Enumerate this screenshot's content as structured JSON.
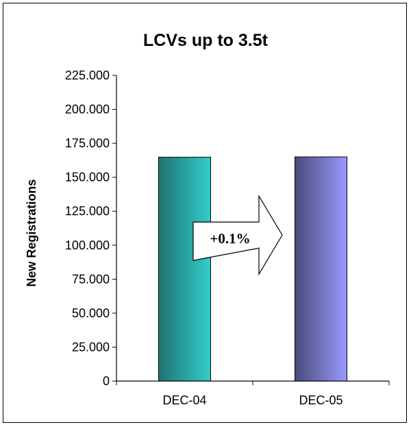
{
  "chart_data": {
    "type": "bar",
    "title": "LCVs up to 3.5t",
    "xlabel": "",
    "ylabel": "New Registrations",
    "categories": [
      "DEC-04",
      "DEC-05"
    ],
    "values": [
      164800,
      165000
    ],
    "ylim": [
      0,
      225000
    ],
    "yticks": [
      0,
      25000,
      50000,
      75000,
      100000,
      125000,
      150000,
      175000,
      200000,
      225000
    ],
    "ytick_labels": [
      "0",
      "25.000",
      "50.000",
      "75.000",
      "100.000",
      "125.000",
      "150.000",
      "175.000",
      "200.000",
      "225.000"
    ],
    "bar_colors": [
      {
        "dark": "#1f7470",
        "light": "#33cccc"
      },
      {
        "dark": "#4a4a7a",
        "light": "#9999ff"
      }
    ],
    "annotation": "+0.1%",
    "grid": false,
    "legend": "none"
  }
}
